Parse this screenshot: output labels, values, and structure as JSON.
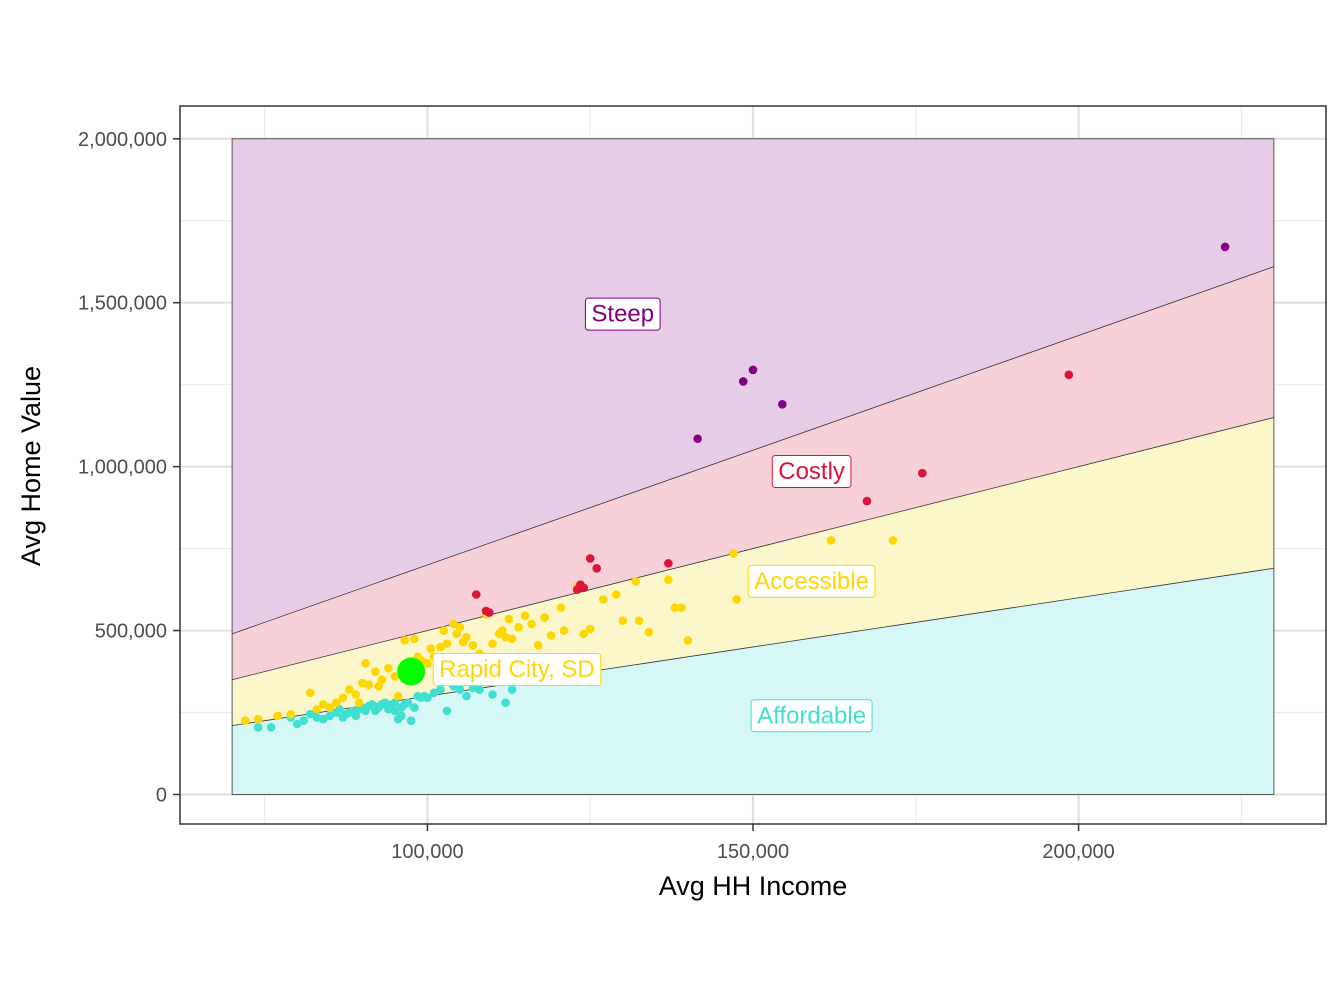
{
  "chart_data": {
    "type": "scatter",
    "title": "",
    "xlabel": "Avg HH Income",
    "ylabel": "Avg Home Value",
    "xlim": [
      62000,
      238000
    ],
    "ylim": [
      -90000,
      2100000
    ],
    "x_ticks": [
      {
        "value": 100000,
        "label": "100,000"
      },
      {
        "value": 150000,
        "label": "150,000"
      },
      {
        "value": 200000,
        "label": "200,000"
      }
    ],
    "y_ticks": [
      {
        "value": 0,
        "label": "0"
      },
      {
        "value": 500000,
        "label": "500,000"
      },
      {
        "value": 1000000,
        "label": "1,000,000"
      },
      {
        "value": 1500000,
        "label": "1,500,000"
      },
      {
        "value": 2000000,
        "label": "2,000,000"
      }
    ],
    "grid": true,
    "legend": "none",
    "bands": {
      "x_range": [
        70000,
        230000
      ],
      "y_max": 2000000,
      "boundaries": [
        {
          "multiplier": 3,
          "name": "affordable-upper"
        },
        {
          "multiplier": 5,
          "name": "accessible-upper"
        },
        {
          "multiplier": 7,
          "name": "costly-upper"
        }
      ],
      "regions": [
        {
          "name": "Affordable",
          "color": "#40E0D0",
          "fill": "#D5F7F5",
          "label_x": 159000,
          "label_y": 240000
        },
        {
          "name": "Accessible",
          "color": "#FFD700",
          "fill": "#FCF6CB",
          "label_x": 159000,
          "label_y": 650000
        },
        {
          "name": "Costly",
          "color": "#DC143C",
          "fill": "#F7D0D8",
          "label_x": 159000,
          "label_y": 985000
        },
        {
          "name": "Steep",
          "color": "#800080",
          "fill": "#E6CCE6",
          "label_x": 130000,
          "label_y": 1465000
        }
      ]
    },
    "highlight": {
      "name": "Rapid City, SD",
      "x": 97500,
      "y": 375000,
      "color": "#00FF00",
      "label_color": "#FFD700"
    },
    "series": [
      {
        "name": "Affordable",
        "color": "#40E0D0",
        "points": [
          [
            74000,
            205000
          ],
          [
            76000,
            205000
          ],
          [
            79000,
            235000
          ],
          [
            80000,
            215000
          ],
          [
            81000,
            225000
          ],
          [
            82000,
            245000
          ],
          [
            83000,
            235000
          ],
          [
            84000,
            230000
          ],
          [
            85000,
            240000
          ],
          [
            86000,
            250000
          ],
          [
            86500,
            260000
          ],
          [
            87000,
            235000
          ],
          [
            87500,
            245000
          ],
          [
            88000,
            250000
          ],
          [
            88500,
            255000
          ],
          [
            89000,
            240000
          ],
          [
            89500,
            260000
          ],
          [
            90000,
            265000
          ],
          [
            90500,
            255000
          ],
          [
            91000,
            270000
          ],
          [
            91500,
            275000
          ],
          [
            92000,
            255000
          ],
          [
            92500,
            265000
          ],
          [
            93000,
            275000
          ],
          [
            93500,
            280000
          ],
          [
            94000,
            260000
          ],
          [
            94500,
            270000
          ],
          [
            95000,
            255000
          ],
          [
            95500,
            230000
          ],
          [
            96000,
            265000
          ],
          [
            96500,
            275000
          ],
          [
            97000,
            280000
          ],
          [
            97500,
            225000
          ],
          [
            98000,
            265000
          ],
          [
            98500,
            300000
          ],
          [
            99000,
            295000
          ],
          [
            99500,
            300000
          ],
          [
            100000,
            295000
          ],
          [
            101000,
            310000
          ],
          [
            102000,
            320000
          ],
          [
            103000,
            255000
          ],
          [
            104000,
            330000
          ],
          [
            105000,
            320000
          ],
          [
            106000,
            300000
          ],
          [
            107000,
            325000
          ],
          [
            108000,
            320000
          ],
          [
            110000,
            305000
          ],
          [
            112000,
            280000
          ],
          [
            113000,
            320000
          ],
          [
            96000,
            240000
          ],
          [
            95000,
            280000
          ]
        ]
      },
      {
        "name": "Accessible",
        "color": "#FFD700",
        "points": [
          [
            72000,
            225000
          ],
          [
            74000,
            230000
          ],
          [
            77000,
            240000
          ],
          [
            79000,
            245000
          ],
          [
            82000,
            310000
          ],
          [
            83000,
            260000
          ],
          [
            84000,
            275000
          ],
          [
            85000,
            265000
          ],
          [
            86000,
            280000
          ],
          [
            87000,
            295000
          ],
          [
            88000,
            320000
          ],
          [
            89000,
            305000
          ],
          [
            89500,
            280000
          ],
          [
            90000,
            340000
          ],
          [
            90500,
            400000
          ],
          [
            91000,
            335000
          ],
          [
            92000,
            375000
          ],
          [
            92500,
            330000
          ],
          [
            93000,
            350000
          ],
          [
            94000,
            385000
          ],
          [
            95000,
            360000
          ],
          [
            95500,
            300000
          ],
          [
            96000,
            370000
          ],
          [
            97000,
            390000
          ],
          [
            98000,
            475000
          ],
          [
            98500,
            420000
          ],
          [
            99000,
            410000
          ],
          [
            100000,
            400000
          ],
          [
            100500,
            445000
          ],
          [
            101000,
            420000
          ],
          [
            102000,
            450000
          ],
          [
            102500,
            500000
          ],
          [
            103000,
            460000
          ],
          [
            104000,
            520000
          ],
          [
            104500,
            490000
          ],
          [
            105000,
            510000
          ],
          [
            105500,
            465000
          ],
          [
            106000,
            480000
          ],
          [
            107000,
            455000
          ],
          [
            108000,
            430000
          ],
          [
            109000,
            550000
          ],
          [
            110000,
            460000
          ],
          [
            111000,
            490000
          ],
          [
            111500,
            500000
          ],
          [
            112000,
            480000
          ],
          [
            112500,
            535000
          ],
          [
            113000,
            475000
          ],
          [
            114000,
            510000
          ],
          [
            115000,
            545000
          ],
          [
            116000,
            520000
          ],
          [
            117000,
            455000
          ],
          [
            118000,
            540000
          ],
          [
            119000,
            485000
          ],
          [
            120500,
            570000
          ],
          [
            121000,
            500000
          ],
          [
            123000,
            635000
          ],
          [
            124000,
            490000
          ],
          [
            125000,
            505000
          ],
          [
            127000,
            595000
          ],
          [
            129000,
            610000
          ],
          [
            130000,
            530000
          ],
          [
            132000,
            650000
          ],
          [
            132500,
            530000
          ],
          [
            134000,
            495000
          ],
          [
            137000,
            655000
          ],
          [
            138000,
            570000
          ],
          [
            139000,
            570000
          ],
          [
            140000,
            470000
          ],
          [
            147000,
            735000
          ],
          [
            147500,
            595000
          ],
          [
            162000,
            775000
          ],
          [
            171500,
            775000
          ],
          [
            96500,
            470000
          ]
        ]
      },
      {
        "name": "Costly",
        "color": "#DC143C",
        "points": [
          [
            107500,
            610000
          ],
          [
            109000,
            560000
          ],
          [
            109500,
            555000
          ],
          [
            123000,
            625000
          ],
          [
            123500,
            640000
          ],
          [
            124000,
            630000
          ],
          [
            125000,
            720000
          ],
          [
            126000,
            690000
          ],
          [
            137000,
            705000
          ],
          [
            167500,
            895000
          ],
          [
            176000,
            980000
          ],
          [
            198500,
            1280000
          ]
        ]
      },
      {
        "name": "Steep",
        "color": "#800080",
        "points": [
          [
            141500,
            1085000
          ],
          [
            148500,
            1260000
          ],
          [
            150000,
            1295000
          ],
          [
            154500,
            1190000
          ],
          [
            222500,
            1670000
          ]
        ]
      }
    ]
  }
}
